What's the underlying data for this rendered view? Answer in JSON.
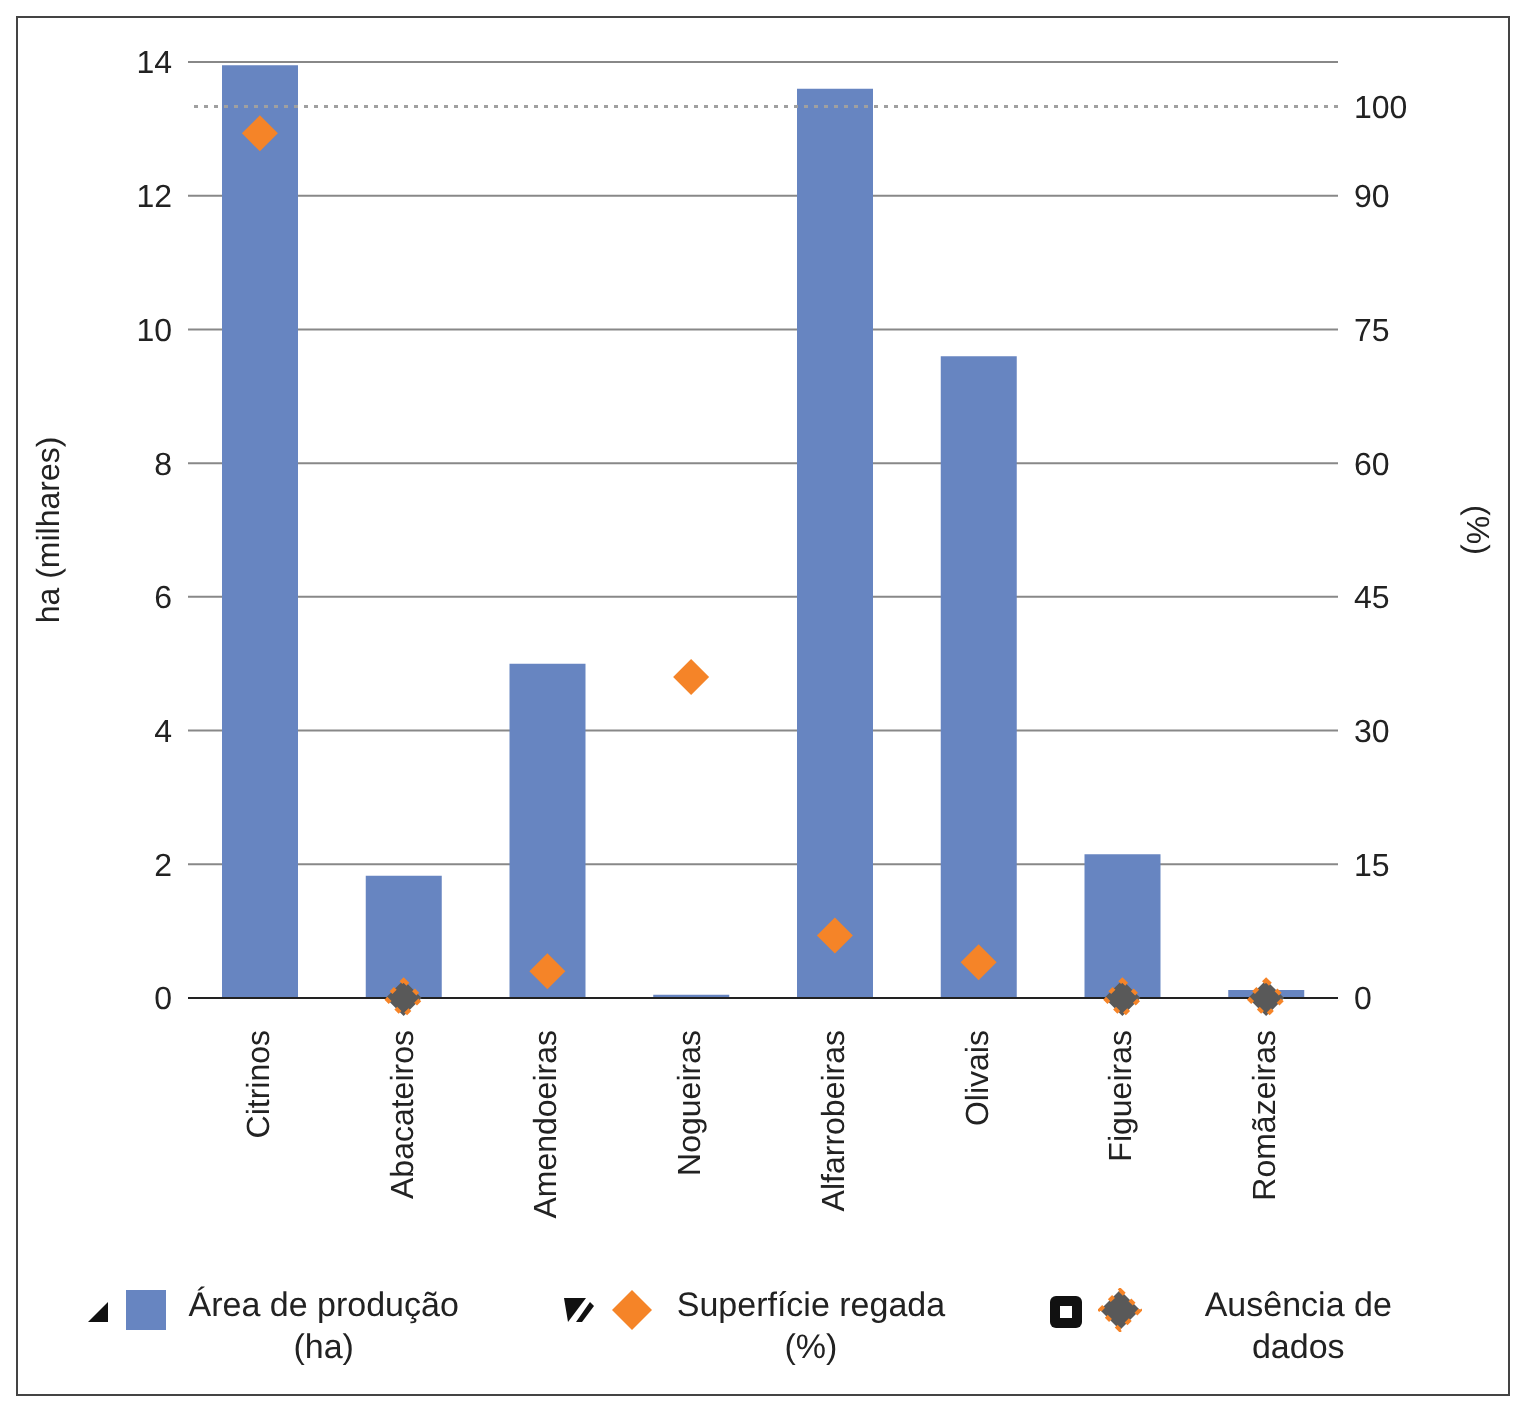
{
  "chart_data": {
    "type": "bar",
    "ylabel": "ha (milhares)",
    "y2label": "(%)",
    "categories": [
      "Citrinos",
      "Abacateiros",
      "Amendoeiras",
      "Nogueiras",
      "Alfarrobeiras",
      "Olivais",
      "Figueiras",
      "Romãzeiras"
    ],
    "series": [
      {
        "name": "Área de produção (ha)",
        "color": "#6785c1",
        "values": [
          13.95,
          1.83,
          5.0,
          0.05,
          13.6,
          9.6,
          2.15,
          0.12
        ]
      },
      {
        "name": "Superfície regada (%)",
        "type": "scatter",
        "axis": "y2",
        "marker": "diamond",
        "color": "#f58428",
        "values": [
          97,
          null,
          3,
          36,
          7,
          4,
          null,
          null
        ]
      },
      {
        "name": "Ausência de dados",
        "type": "scatter",
        "axis": "y2",
        "marker": "diamond",
        "color": "#595959",
        "values": [
          null,
          0,
          null,
          null,
          null,
          null,
          0,
          0
        ]
      }
    ],
    "ylim": [
      0,
      14
    ],
    "yticks": [
      0,
      2,
      4,
      6,
      8,
      10,
      12,
      14
    ],
    "y2lim": [
      0,
      105
    ],
    "y2ticks": [
      0,
      15,
      30,
      45,
      60,
      75,
      90,
      100
    ],
    "ref_lines": [
      {
        "axis": "y2",
        "value": 100,
        "color": "#a0a0a0",
        "line_style": "dotted"
      }
    ],
    "grid": "y",
    "legend": "bottom"
  }
}
